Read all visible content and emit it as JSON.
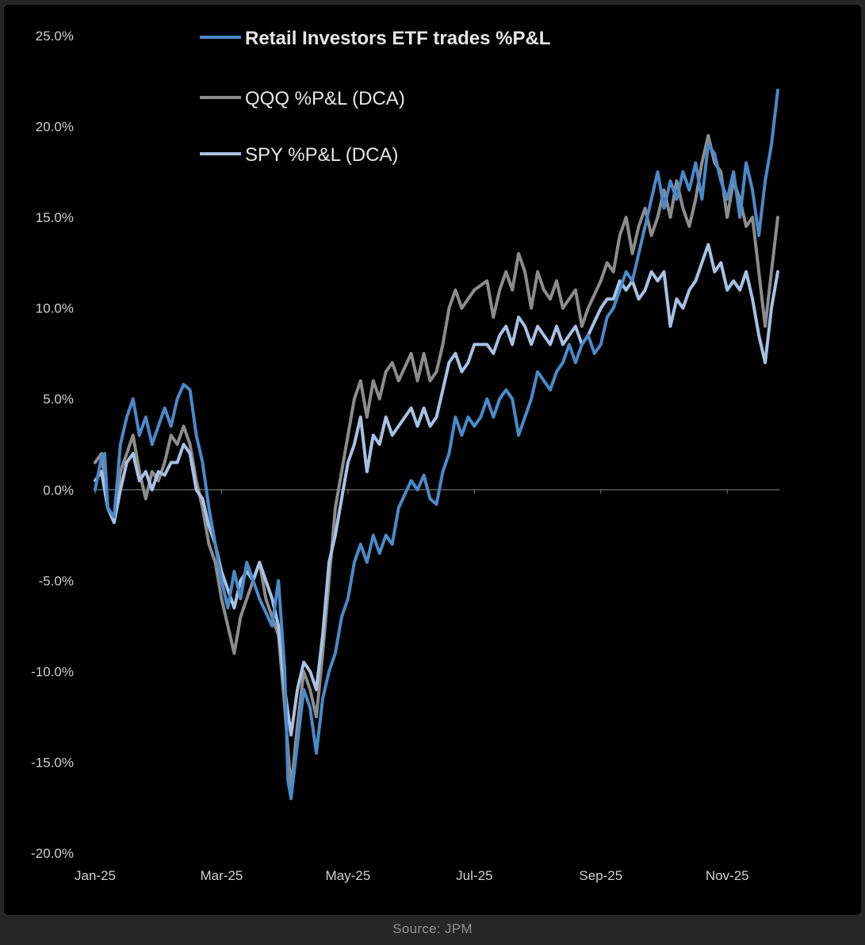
{
  "chart_data": {
    "type": "line",
    "title": "",
    "xlabel": "",
    "ylabel": "",
    "ylim": [
      -20,
      25
    ],
    "y_ticks": [
      25,
      20,
      15,
      10,
      5,
      0,
      -5,
      -10,
      -15,
      -20
    ],
    "y_tick_labels": [
      "25.0%",
      "20.0%",
      "15.0%",
      "10.0%",
      "5.0%",
      "0.0%",
      "-5.0%",
      "-10.0%",
      "-15.0%",
      "-20.0%"
    ],
    "x_tick_positions": [
      0,
      2,
      4,
      6,
      8,
      10
    ],
    "x_tick_labels": [
      "Jan-25",
      "Mar-25",
      "May-25",
      "Jul-25",
      "Sep-25",
      "Nov-25"
    ],
    "legend_position": "top-left",
    "series": [
      {
        "name": "Retail Investors ETF trades %P&L",
        "color": "#4a8ac9",
        "points": [
          [
            0,
            0
          ],
          [
            0.1,
            1.8
          ],
          [
            0.15,
            2
          ],
          [
            0.2,
            -1
          ],
          [
            0.3,
            -1.5
          ],
          [
            0.4,
            2.5
          ],
          [
            0.5,
            4
          ],
          [
            0.6,
            5
          ],
          [
            0.7,
            3
          ],
          [
            0.8,
            4
          ],
          [
            0.9,
            2.5
          ],
          [
            1,
            3.5
          ],
          [
            1.1,
            4.5
          ],
          [
            1.2,
            3.5
          ],
          [
            1.3,
            5
          ],
          [
            1.4,
            5.8
          ],
          [
            1.5,
            5.5
          ],
          [
            1.6,
            3
          ],
          [
            1.7,
            1.5
          ],
          [
            1.8,
            -1
          ],
          [
            1.9,
            -3
          ],
          [
            2,
            -5
          ],
          [
            2.1,
            -6.5
          ],
          [
            2.2,
            -4.5
          ],
          [
            2.3,
            -6
          ],
          [
            2.4,
            -4
          ],
          [
            2.5,
            -5
          ],
          [
            2.6,
            -6
          ],
          [
            2.8,
            -7.5
          ],
          [
            2.9,
            -5
          ],
          [
            3,
            -10
          ],
          [
            3.05,
            -16
          ],
          [
            3.1,
            -17
          ],
          [
            3.2,
            -14
          ],
          [
            3.3,
            -11
          ],
          [
            3.4,
            -12
          ],
          [
            3.5,
            -14.5
          ],
          [
            3.6,
            -11.5
          ],
          [
            3.7,
            -10
          ],
          [
            3.8,
            -9
          ],
          [
            3.9,
            -7
          ],
          [
            4,
            -6
          ],
          [
            4.1,
            -4
          ],
          [
            4.2,
            -3
          ],
          [
            4.3,
            -4
          ],
          [
            4.4,
            -2.5
          ],
          [
            4.5,
            -3.5
          ],
          [
            4.6,
            -2.5
          ],
          [
            4.7,
            -3
          ],
          [
            4.8,
            -1
          ],
          [
            5,
            0.5
          ],
          [
            5.1,
            0
          ],
          [
            5.2,
            0.8
          ],
          [
            5.3,
            -0.5
          ],
          [
            5.4,
            -0.8
          ],
          [
            5.5,
            1
          ],
          [
            5.6,
            2
          ],
          [
            5.7,
            4
          ],
          [
            5.8,
            3
          ],
          [
            5.9,
            4
          ],
          [
            6,
            3.5
          ],
          [
            6.1,
            4
          ],
          [
            6.2,
            5
          ],
          [
            6.3,
            4
          ],
          [
            6.4,
            5
          ],
          [
            6.5,
            5.5
          ],
          [
            6.6,
            5
          ],
          [
            6.7,
            3
          ],
          [
            6.8,
            4
          ],
          [
            6.9,
            5
          ],
          [
            7,
            6.5
          ],
          [
            7.1,
            6
          ],
          [
            7.2,
            5.5
          ],
          [
            7.3,
            6.5
          ],
          [
            7.4,
            7
          ],
          [
            7.5,
            8
          ],
          [
            7.6,
            7
          ],
          [
            7.7,
            8
          ],
          [
            7.8,
            8.5
          ],
          [
            7.9,
            7.5
          ],
          [
            8,
            8
          ],
          [
            8.1,
            9.5
          ],
          [
            8.2,
            10
          ],
          [
            8.3,
            11
          ],
          [
            8.4,
            12
          ],
          [
            8.5,
            11.5
          ],
          [
            8.6,
            13
          ],
          [
            8.7,
            14.5
          ],
          [
            8.8,
            16
          ],
          [
            8.9,
            17.5
          ],
          [
            9,
            15.5
          ],
          [
            9.1,
            17
          ],
          [
            9.2,
            16
          ],
          [
            9.3,
            17.5
          ],
          [
            9.4,
            16.5
          ],
          [
            9.5,
            18
          ],
          [
            9.6,
            16
          ],
          [
            9.7,
            19
          ],
          [
            9.8,
            18.5
          ],
          [
            9.9,
            17
          ],
          [
            10,
            16
          ],
          [
            10.1,
            17.5
          ],
          [
            10.2,
            15
          ],
          [
            10.3,
            18
          ],
          [
            10.4,
            16.5
          ],
          [
            10.5,
            14
          ],
          [
            10.6,
            17
          ],
          [
            10.7,
            19
          ],
          [
            10.8,
            22
          ]
        ]
      },
      {
        "name": "QQQ %P&L (DCA)",
        "color": "#8c8c8c",
        "points": [
          [
            0,
            1.5
          ],
          [
            0.1,
            2
          ],
          [
            0.2,
            -1
          ],
          [
            0.3,
            -1.8
          ],
          [
            0.4,
            1
          ],
          [
            0.5,
            2
          ],
          [
            0.6,
            3
          ],
          [
            0.7,
            1
          ],
          [
            0.8,
            -0.5
          ],
          [
            0.9,
            1
          ],
          [
            1,
            0.5
          ],
          [
            1.1,
            1.5
          ],
          [
            1.2,
            3
          ],
          [
            1.3,
            2.5
          ],
          [
            1.4,
            3.5
          ],
          [
            1.5,
            2.5
          ],
          [
            1.6,
            0.5
          ],
          [
            1.7,
            -1
          ],
          [
            1.8,
            -3
          ],
          [
            1.9,
            -4
          ],
          [
            2,
            -6
          ],
          [
            2.1,
            -7.5
          ],
          [
            2.2,
            -9
          ],
          [
            2.3,
            -7
          ],
          [
            2.4,
            -6
          ],
          [
            2.5,
            -5
          ],
          [
            2.6,
            -4
          ],
          [
            2.7,
            -6
          ],
          [
            2.8,
            -7
          ],
          [
            2.9,
            -8
          ],
          [
            3,
            -12
          ],
          [
            3.1,
            -16.5
          ],
          [
            3.2,
            -13
          ],
          [
            3.3,
            -10
          ],
          [
            3.4,
            -11
          ],
          [
            3.5,
            -12.5
          ],
          [
            3.6,
            -9
          ],
          [
            3.7,
            -5
          ],
          [
            3.8,
            -1
          ],
          [
            3.9,
            1
          ],
          [
            4,
            3
          ],
          [
            4.1,
            5
          ],
          [
            4.2,
            6
          ],
          [
            4.3,
            4
          ],
          [
            4.4,
            6
          ],
          [
            4.5,
            5
          ],
          [
            4.6,
            6.5
          ],
          [
            4.7,
            7
          ],
          [
            4.8,
            6
          ],
          [
            5,
            7.5
          ],
          [
            5.1,
            6
          ],
          [
            5.2,
            7.5
          ],
          [
            5.3,
            6
          ],
          [
            5.4,
            6.5
          ],
          [
            5.5,
            8
          ],
          [
            5.6,
            10
          ],
          [
            5.7,
            11
          ],
          [
            5.8,
            10
          ],
          [
            5.9,
            10.5
          ],
          [
            6,
            11
          ],
          [
            6.2,
            11.5
          ],
          [
            6.3,
            9.5
          ],
          [
            6.4,
            11
          ],
          [
            6.5,
            12
          ],
          [
            6.6,
            11
          ],
          [
            6.7,
            13
          ],
          [
            6.8,
            12
          ],
          [
            6.9,
            10
          ],
          [
            7,
            12
          ],
          [
            7.1,
            11
          ],
          [
            7.2,
            10.5
          ],
          [
            7.3,
            11.5
          ],
          [
            7.4,
            10
          ],
          [
            7.5,
            10.5
          ],
          [
            7.6,
            11
          ],
          [
            7.7,
            9
          ],
          [
            7.8,
            10
          ],
          [
            8,
            11.5
          ],
          [
            8.1,
            12.5
          ],
          [
            8.2,
            12
          ],
          [
            8.3,
            14
          ],
          [
            8.4,
            15
          ],
          [
            8.5,
            13
          ],
          [
            8.6,
            14.5
          ],
          [
            8.7,
            15.5
          ],
          [
            8.8,
            14
          ],
          [
            8.9,
            15
          ],
          [
            9,
            16.5
          ],
          [
            9.1,
            15
          ],
          [
            9.2,
            17
          ],
          [
            9.3,
            15.5
          ],
          [
            9.4,
            14.5
          ],
          [
            9.5,
            16
          ],
          [
            9.6,
            18
          ],
          [
            9.7,
            19.5
          ],
          [
            9.8,
            18
          ],
          [
            9.9,
            17.5
          ],
          [
            10,
            15
          ],
          [
            10.1,
            17
          ],
          [
            10.2,
            16
          ],
          [
            10.3,
            14.5
          ],
          [
            10.4,
            15
          ],
          [
            10.5,
            12
          ],
          [
            10.6,
            9
          ],
          [
            10.7,
            12
          ],
          [
            10.8,
            15
          ]
        ]
      },
      {
        "name": "SPY %P&L (DCA)",
        "color": "#a8c1e3",
        "points": [
          [
            0,
            0.5
          ],
          [
            0.1,
            1
          ],
          [
            0.2,
            -1
          ],
          [
            0.3,
            -1.8
          ],
          [
            0.4,
            0
          ],
          [
            0.5,
            1.5
          ],
          [
            0.6,
            2
          ],
          [
            0.7,
            0.5
          ],
          [
            0.8,
            1
          ],
          [
            0.9,
            0
          ],
          [
            1,
            1
          ],
          [
            1.1,
            0.8
          ],
          [
            1.2,
            1.5
          ],
          [
            1.3,
            1.5
          ],
          [
            1.4,
            2.5
          ],
          [
            1.5,
            2
          ],
          [
            1.6,
            0
          ],
          [
            1.7,
            -0.5
          ],
          [
            1.8,
            -2
          ],
          [
            1.9,
            -3
          ],
          [
            2,
            -4.5
          ],
          [
            2.1,
            -5.5
          ],
          [
            2.2,
            -6.5
          ],
          [
            2.3,
            -5
          ],
          [
            2.4,
            -4.5
          ],
          [
            2.5,
            -5
          ],
          [
            2.6,
            -4
          ],
          [
            2.7,
            -5
          ],
          [
            2.8,
            -6
          ],
          [
            2.9,
            -7.5
          ],
          [
            3,
            -11
          ],
          [
            3.1,
            -13.5
          ],
          [
            3.2,
            -11
          ],
          [
            3.3,
            -9.5
          ],
          [
            3.4,
            -10
          ],
          [
            3.5,
            -11
          ],
          [
            3.6,
            -8
          ],
          [
            3.7,
            -4
          ],
          [
            3.8,
            -2.5
          ],
          [
            3.9,
            -0.5
          ],
          [
            4,
            1.5
          ],
          [
            4.1,
            2.5
          ],
          [
            4.2,
            4
          ],
          [
            4.3,
            1
          ],
          [
            4.4,
            3
          ],
          [
            4.5,
            2.5
          ],
          [
            4.6,
            4
          ],
          [
            4.7,
            3
          ],
          [
            4.8,
            3.5
          ],
          [
            5,
            4.5
          ],
          [
            5.1,
            3.5
          ],
          [
            5.2,
            4.5
          ],
          [
            5.3,
            3.5
          ],
          [
            5.4,
            4
          ],
          [
            5.5,
            5.5
          ],
          [
            5.6,
            7
          ],
          [
            5.7,
            7.5
          ],
          [
            5.8,
            6.5
          ],
          [
            5.9,
            7
          ],
          [
            6,
            8
          ],
          [
            6.2,
            8
          ],
          [
            6.3,
            7.5
          ],
          [
            6.4,
            8.5
          ],
          [
            6.5,
            9
          ],
          [
            6.6,
            8
          ],
          [
            6.7,
            9.5
          ],
          [
            6.8,
            9
          ],
          [
            6.9,
            8
          ],
          [
            7,
            9
          ],
          [
            7.1,
            8.5
          ],
          [
            7.2,
            8
          ],
          [
            7.3,
            9
          ],
          [
            7.4,
            8
          ],
          [
            7.5,
            8.5
          ],
          [
            7.6,
            9
          ],
          [
            7.7,
            8
          ],
          [
            7.8,
            8.5
          ],
          [
            8,
            10
          ],
          [
            8.1,
            10.5
          ],
          [
            8.2,
            10.5
          ],
          [
            8.3,
            11.5
          ],
          [
            8.4,
            11
          ],
          [
            8.5,
            11.5
          ],
          [
            8.6,
            10.5
          ],
          [
            8.7,
            11
          ],
          [
            8.8,
            12
          ],
          [
            8.9,
            11.5
          ],
          [
            9,
            12
          ],
          [
            9.1,
            9
          ],
          [
            9.2,
            10.5
          ],
          [
            9.3,
            10
          ],
          [
            9.4,
            11
          ],
          [
            9.5,
            11.5
          ],
          [
            9.6,
            12.5
          ],
          [
            9.7,
            13.5
          ],
          [
            9.8,
            12
          ],
          [
            9.9,
            12.5
          ],
          [
            10,
            11
          ],
          [
            10.1,
            11.5
          ],
          [
            10.2,
            11
          ],
          [
            10.3,
            12
          ],
          [
            10.4,
            10.5
          ],
          [
            10.5,
            8.5
          ],
          [
            10.6,
            7
          ],
          [
            10.7,
            10
          ],
          [
            10.8,
            12
          ]
        ]
      }
    ]
  },
  "footer": {
    "source": "Source: JPM"
  }
}
